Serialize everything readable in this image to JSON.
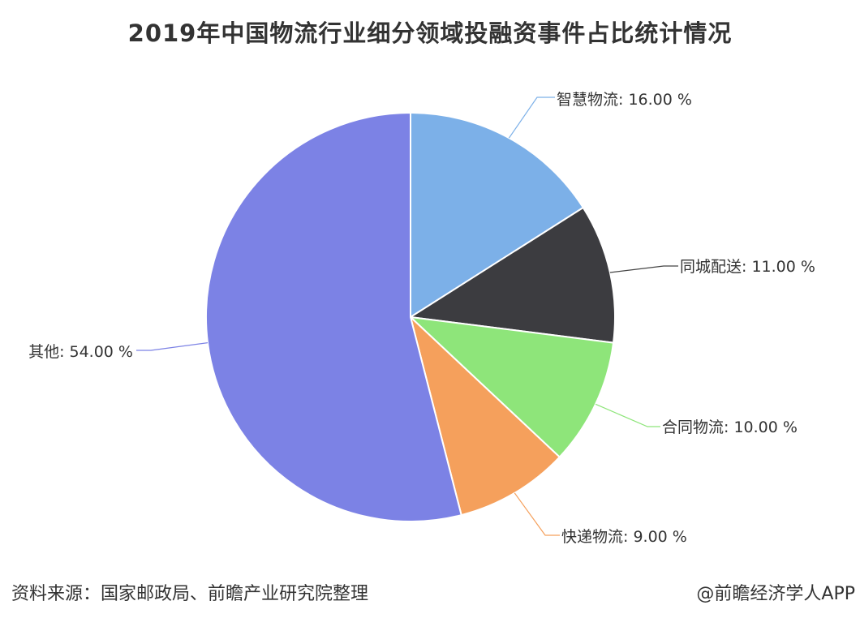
{
  "chart_data": {
    "type": "pie",
    "title": "2019年中国物流行业细分领域投融资事件占比统计情况",
    "slices": [
      {
        "name": "智慧物流",
        "value": 16.0,
        "label": "智慧物流: 16.00 %",
        "color": "#7cb0e8"
      },
      {
        "name": "同城配送",
        "value": 11.0,
        "label": "同城配送: 11.00 %",
        "color": "#3c3c40"
      },
      {
        "name": "合同物流",
        "value": 10.0,
        "label": "合同物流: 10.00 %",
        "color": "#8ee57a"
      },
      {
        "name": "快递物流",
        "value": 9.0,
        "label": "快递物流: 9.00 %",
        "color": "#f5a05c"
      },
      {
        "name": "其他",
        "value": 54.0,
        "label": "其他: 54.00 %",
        "color": "#7c82e5"
      }
    ]
  },
  "footer": {
    "source": "资料来源：国家邮政局、前瞻产业研究院整理",
    "brand": "@前瞻经济学人APP"
  }
}
